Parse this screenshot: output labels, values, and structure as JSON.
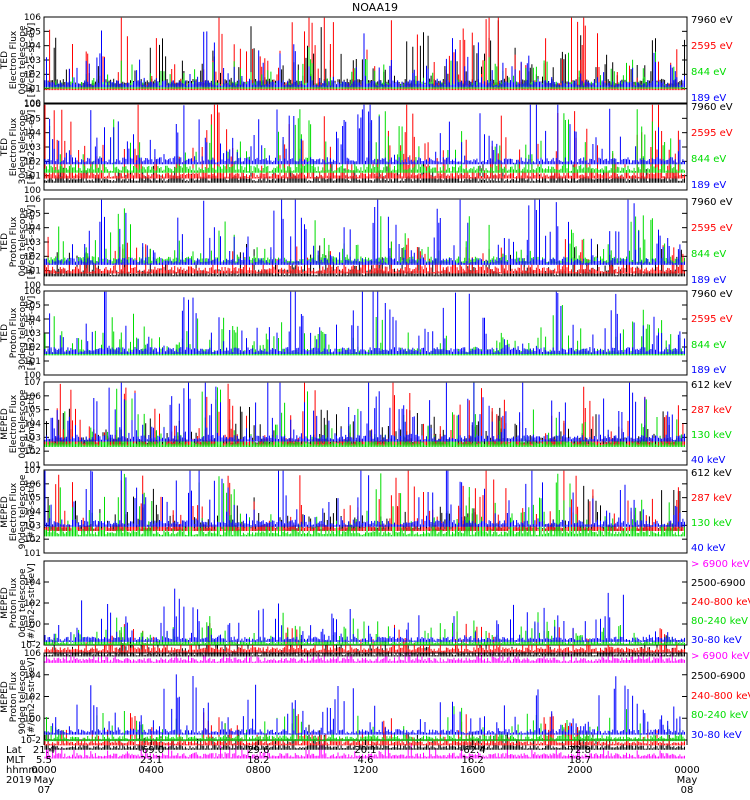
{
  "title": "NOAA19",
  "chart_data": [
    {
      "type": "line",
      "ylabel": [
        "TED",
        "Electron Flux",
        "0deg telescope",
        "[#/cm2-s-str-eV]"
      ],
      "yscale": "log",
      "ylim": [
        1,
        1000000
      ],
      "yticks": [
        "10^0",
        "10^1",
        "10^2",
        "10^3",
        "10^4",
        "10^5",
        "10^6"
      ],
      "series": [
        {
          "name": "7960 eV",
          "color": "#000000",
          "base": 1.3,
          "spikes": 3.2
        },
        {
          "name": "2595 eV",
          "color": "#ff0000",
          "base": 1.0,
          "spikes": 5.0
        },
        {
          "name": "844 eV",
          "color": "#00dd00",
          "base": 1.1,
          "spikes": 2.0
        },
        {
          "name": "189 eV",
          "color": "#0000ff",
          "base": 1.2,
          "spikes": 3.0
        }
      ]
    },
    {
      "type": "line",
      "ylabel": [
        "TED",
        "Electron Flux",
        "30deg telescope",
        "[#/cm2-s-str-eV]"
      ],
      "yscale": "log",
      "ylim": [
        1,
        1000000
      ],
      "yticks": [
        "10^0",
        "10^1",
        "10^2",
        "10^3",
        "10^4",
        "10^5",
        "10^6"
      ],
      "series": [
        {
          "name": "7960 eV",
          "color": "#000000",
          "base": 0.6,
          "spikes": 1.0
        },
        {
          "name": "2595 eV",
          "color": "#ff0000",
          "base": 0.9,
          "spikes": 4.0
        },
        {
          "name": "844 eV",
          "color": "#00dd00",
          "base": 1.3,
          "spikes": 3.0
        },
        {
          "name": "189 eV",
          "color": "#0000ff",
          "base": 1.9,
          "spikes": 4.0
        }
      ]
    },
    {
      "type": "line",
      "ylabel": [
        "TED",
        "Proton Flux",
        "0deg telescope",
        "[#/cm2-s-str-eV]"
      ],
      "yscale": "log",
      "ylim": [
        1,
        1000000
      ],
      "yticks": [
        "10^0",
        "10^1",
        "10^2",
        "10^3",
        "10^4",
        "10^5",
        "10^6"
      ],
      "series": [
        {
          "name": "7960 eV",
          "color": "#000000",
          "base": 0.7,
          "spikes": 1.5
        },
        {
          "name": "2595 eV",
          "color": "#ff0000",
          "base": 0.9,
          "spikes": 1.8
        },
        {
          "name": "844 eV",
          "color": "#00dd00",
          "base": 1.6,
          "spikes": 2.6
        },
        {
          "name": "189 eV",
          "color": "#0000ff",
          "base": 1.5,
          "spikes": 4.0
        }
      ]
    },
    {
      "type": "line",
      "ylabel": [
        "TED",
        "Proton Flux",
        "30deg telescope",
        "[#/cm2-s-str-eV]"
      ],
      "yscale": "log",
      "ylim": [
        1,
        1000000
      ],
      "yticks": [
        "10^0",
        "10^1",
        "10^2",
        "10^3",
        "10^4",
        "10^5",
        "10^6"
      ],
      "series": [
        {
          "name": "7960 eV",
          "color": "#000000",
          "base": 0.0,
          "spikes": 0.0
        },
        {
          "name": "2595 eV",
          "color": "#ff0000",
          "base": 0.0,
          "spikes": 0.0
        },
        {
          "name": "844 eV",
          "color": "#00dd00",
          "base": 1.5,
          "spikes": 2.3
        },
        {
          "name": "189 eV",
          "color": "#0000ff",
          "base": 1.6,
          "spikes": 3.5
        }
      ]
    },
    {
      "type": "line",
      "ylabel": [
        "MEPED",
        "Electron Flux",
        "0deg telescope",
        "[#/cm2-s-str]"
      ],
      "yscale": "log",
      "ylim": [
        10,
        10000000
      ],
      "yticks": [
        "10^1",
        "10^2",
        "10^3",
        "10^4",
        "10^5",
        "10^6",
        "10^7"
      ],
      "series": [
        {
          "name": "612 keV",
          "color": "#000000",
          "base": 1.6,
          "spikes": 1.8
        },
        {
          "name": "287 keV",
          "color": "#ff0000",
          "base": 1.5,
          "spikes": 3.5
        },
        {
          "name": "130 keV",
          "color": "#00dd00",
          "base": 1.4,
          "spikes": 3.2
        },
        {
          "name": "40 keV",
          "color": "#0000ff",
          "base": 1.8,
          "spikes": 4.3
        }
      ]
    },
    {
      "type": "line",
      "ylabel": [
        "MEPED",
        "Electron Flux",
        "90deg telescope",
        "[#/cm2-s-str]"
      ],
      "yscale": "log",
      "ylim": [
        10,
        10000000
      ],
      "yticks": [
        "10^1",
        "10^2",
        "10^3",
        "10^4",
        "10^5",
        "10^6",
        "10^7"
      ],
      "series": [
        {
          "name": "612 keV",
          "color": "#000000",
          "base": 1.7,
          "spikes": 2.2
        },
        {
          "name": "287 keV",
          "color": "#ff0000",
          "base": 1.7,
          "spikes": 3.6
        },
        {
          "name": "130 keV",
          "color": "#00dd00",
          "base": 1.3,
          "spikes": 3.4
        },
        {
          "name": "40 keV",
          "color": "#0000ff",
          "base": 2.0,
          "spikes": 4.3
        }
      ]
    },
    {
      "type": "line",
      "ylabel": [
        "MEPED",
        "Proton Flux",
        "0deg telescope",
        "[#/cm2-s-str-keV]"
      ],
      "yscale": "log",
      "ylim": [
        0.01,
        1000000
      ],
      "yticks": [
        "10^-2",
        "10^0",
        "10^2",
        "10^4"
      ],
      "series": [
        {
          "name": "> 6900 keV",
          "color": "#ff00ff",
          "base": -1.6,
          "spikes": 0.8
        },
        {
          "name": "2500-6900",
          "color": "#000000",
          "base": -1.0,
          "spikes": 1.2
        },
        {
          "name": "240-800 keV",
          "color": "#ff0000",
          "base": -0.6,
          "spikes": 1.8
        },
        {
          "name": "80-240 keV",
          "color": "#00dd00",
          "base": 0.1,
          "spikes": 2.0
        },
        {
          "name": "30-80 keV",
          "color": "#0000ff",
          "base": 0.4,
          "spikes": 3.6
        }
      ]
    },
    {
      "type": "line",
      "ylabel": [
        "MEPED",
        "Proton Flux",
        "90deg telescope",
        "[#/cm2-s-str-keV]"
      ],
      "yscale": "log",
      "ylim": [
        0.01,
        1000000
      ],
      "yticks": [
        "10^-2",
        "10^0",
        "10^2",
        "10^4",
        "10^6"
      ],
      "series": [
        {
          "name": "> 6900 keV",
          "color": "#ff00ff",
          "base": -1.6,
          "spikes": 0.9
        },
        {
          "name": "2500-6900",
          "color": "#000000",
          "base": -0.8,
          "spikes": 1.4
        },
        {
          "name": "240-800 keV",
          "color": "#ff0000",
          "base": -0.4,
          "spikes": 2.0
        },
        {
          "name": "80-240 keV",
          "color": "#00dd00",
          "base": 0.0,
          "spikes": 2.2
        },
        {
          "name": "30-80 keV",
          "color": "#0000ff",
          "base": 0.6,
          "spikes": 4.0
        }
      ]
    }
  ],
  "x_axis": {
    "headers": [
      "Lat",
      "MLT",
      "hhmm",
      "2019"
    ],
    "columns": [
      {
        "lat": "21.4",
        "mlt": "5.5",
        "hhmm": "0000",
        "date": "May 07"
      },
      {
        "lat": "-69.0",
        "mlt": "23.1",
        "hhmm": "0400",
        "date": ""
      },
      {
        "lat": "29.6",
        "mlt": "18.2",
        "hhmm": "0800",
        "date": ""
      },
      {
        "lat": "20.1",
        "mlt": "4.6",
        "hhmm": "1200",
        "date": ""
      },
      {
        "lat": "-62.4",
        "mlt": "16.2",
        "hhmm": "1600",
        "date": ""
      },
      {
        "lat": "72.8",
        "mlt": "18.7",
        "hhmm": "2000",
        "date": ""
      },
      {
        "lat": "",
        "mlt": "",
        "hhmm": "0000",
        "date": "May 08"
      }
    ]
  }
}
